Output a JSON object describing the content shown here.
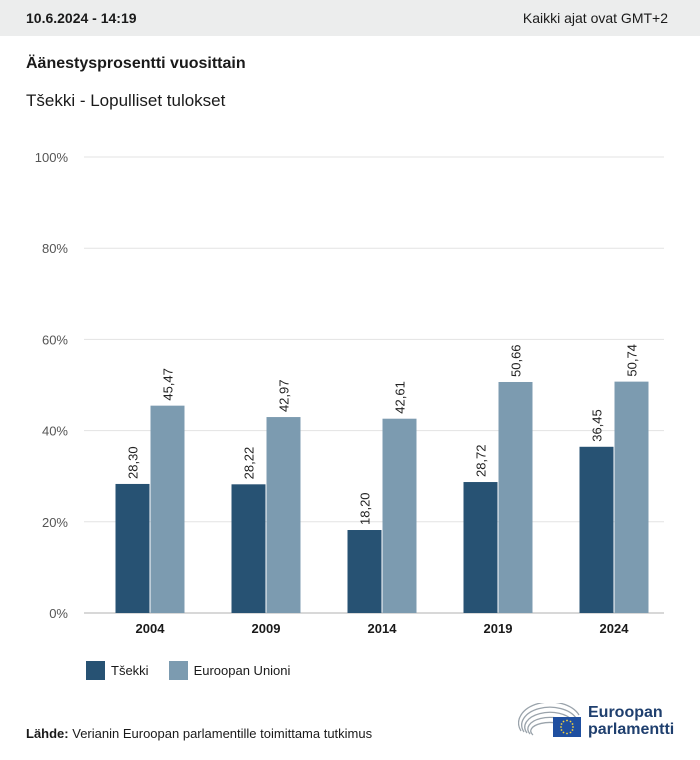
{
  "header": {
    "date": "10.6.2024 - 14:19",
    "timezone": "Kaikki ajat ovat GMT+2"
  },
  "title": "Äänestysprosentti vuosittain",
  "subtitle": "Tšekki - Lopulliset tulokset",
  "colors": {
    "series1": "#275273",
    "series2": "#7c9bb0",
    "grid": "#e3e3e3",
    "axis": "#b0b0b0"
  },
  "chart_data": {
    "type": "bar",
    "categories": [
      "2004",
      "2009",
      "2014",
      "2019",
      "2024"
    ],
    "series": [
      {
        "name": "Tšekki",
        "values": [
          28.3,
          28.22,
          18.2,
          28.72,
          36.45
        ],
        "labels": [
          "28,30",
          "28,22",
          "18,20",
          "28,72",
          "36,45"
        ]
      },
      {
        "name": "Euroopan Unioni",
        "values": [
          45.47,
          42.97,
          42.61,
          50.66,
          50.74
        ],
        "labels": [
          "45,47",
          "42,97",
          "42,61",
          "50,66",
          "50,74"
        ]
      }
    ],
    "yticks": [
      "0%",
      "20%",
      "40%",
      "60%",
      "80%",
      "100%"
    ],
    "ylim": [
      0,
      100
    ],
    "grid": true,
    "legend": "bottom-left"
  },
  "legend": {
    "series1": "Tšekki",
    "series2": "Euroopan Unioni"
  },
  "source": {
    "label": "Lähde:",
    "text": "Verianin Euroopan parlamentille toimittama tutkimus"
  },
  "logo": {
    "line1": "Euroopan",
    "line2": "parlamentti"
  }
}
